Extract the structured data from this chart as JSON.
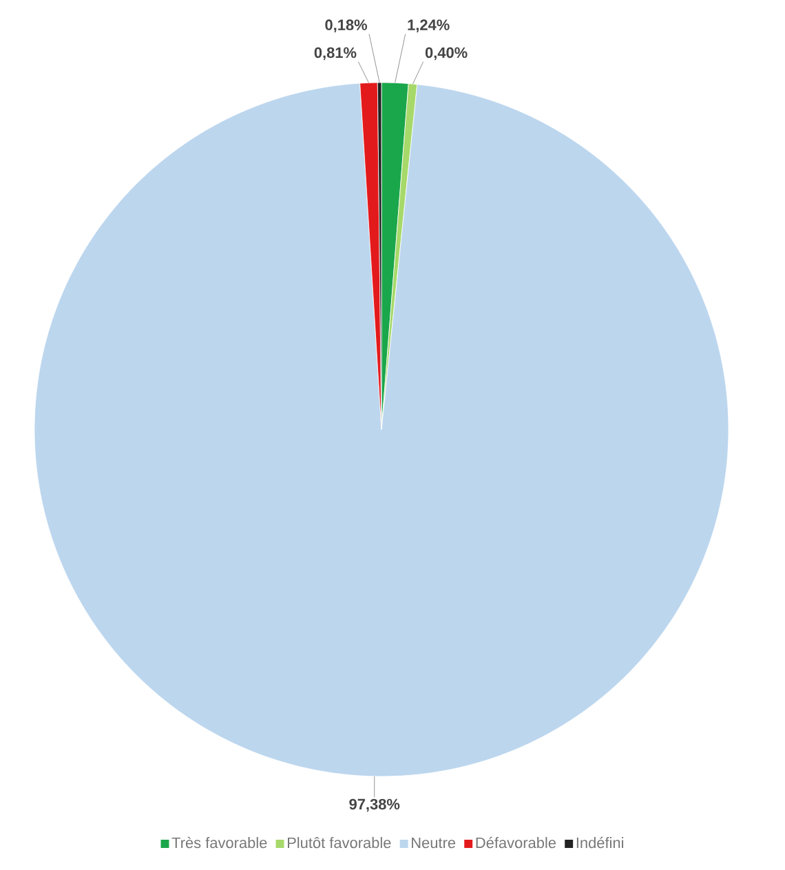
{
  "chart_data": {
    "type": "pie",
    "categories": [
      "Très favorable",
      "Plutôt favorable",
      "Neutre",
      "Défavorable",
      "Indéfini"
    ],
    "values": [
      1.24,
      0.4,
      97.38,
      0.81,
      0.18
    ],
    "colors": [
      "#1aa64a",
      "#a6d96a",
      "#bcd6ee",
      "#e31a1c",
      "#222222"
    ],
    "value_labels": [
      "1,24%",
      "0,40%",
      "97,38%",
      "0,81%",
      "0,18%"
    ],
    "legend": "bottom"
  }
}
